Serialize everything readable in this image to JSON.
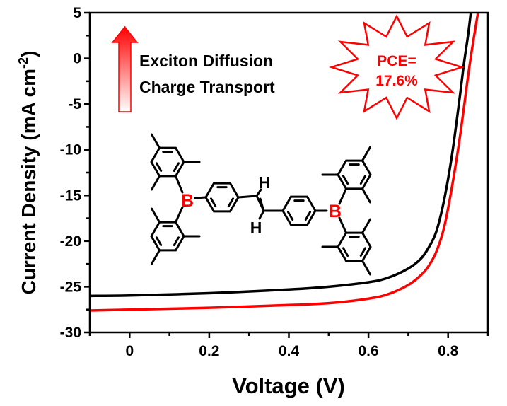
{
  "chart_data": {
    "type": "line",
    "title": "",
    "xlabel": "Voltage (V)",
    "ylabel_main": "Current Density (mA cm",
    "ylabel_sup": "-2",
    "ylabel_end": ")",
    "xlim": [
      -0.1,
      0.9
    ],
    "ylim": [
      -30,
      5
    ],
    "xticks": [
      0,
      0.2,
      0.4,
      0.6,
      0.8
    ],
    "xtick_labels": [
      "0",
      "0.2",
      "0.4",
      "0.6",
      "0.8"
    ],
    "yticks": [
      5,
      0,
      -5,
      -10,
      -15,
      -20,
      -25,
      -30
    ],
    "ytick_labels": [
      "5",
      "0",
      "-5",
      "-10",
      "-15",
      "-20",
      "-25",
      "-30"
    ],
    "grid": false,
    "series": [
      {
        "color": "#000000",
        "x": [
          -0.1,
          0,
          0.2,
          0.4,
          0.5,
          0.6,
          0.65,
          0.7,
          0.73,
          0.75,
          0.77,
          0.79,
          0.81,
          0.83,
          0.84,
          0.85,
          0.857
        ],
        "y": [
          -26.0,
          -25.95,
          -25.7,
          -25.3,
          -25.0,
          -24.5,
          -24.0,
          -23.0,
          -22.0,
          -20.8,
          -19.0,
          -15.5,
          -10.5,
          -4.0,
          -0.5,
          2.5,
          5.0
        ]
      },
      {
        "color": "#ff0000",
        "x": [
          -0.1,
          0,
          0.2,
          0.4,
          0.5,
          0.6,
          0.65,
          0.7,
          0.73,
          0.75,
          0.77,
          0.79,
          0.81,
          0.83,
          0.85,
          0.86,
          0.875
        ],
        "y": [
          -27.6,
          -27.5,
          -27.3,
          -27.0,
          -26.8,
          -26.3,
          -25.8,
          -24.8,
          -23.8,
          -22.8,
          -21.2,
          -18.5,
          -14.0,
          -8.5,
          -2.0,
          1.0,
          5.0
        ]
      }
    ],
    "annotations": {
      "arrow_text_line1": "Exciton Diffusion",
      "arrow_text_line2": "Charge Transport",
      "pce_line1": "PCE=",
      "pce_line2": "17.6%",
      "accent_color": "#ff0000"
    },
    "molecule_labels": {
      "boron": "B",
      "hydrogen": "H"
    }
  }
}
